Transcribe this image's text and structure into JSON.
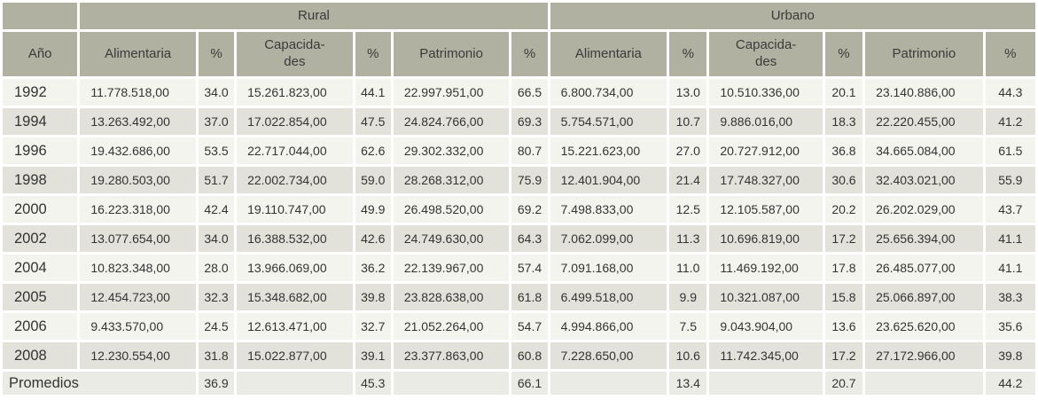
{
  "colors": {
    "header_bg": "#b1b1a2",
    "row_bg": "#f4f4ef",
    "row_alt_bg": "#e2e2da",
    "footer_bg": "#ebebe6",
    "text": "#333333",
    "gap": "#ffffff"
  },
  "chart_data": {
    "type": "table",
    "group_headers": [
      {
        "label": "",
        "span": 1
      },
      {
        "label": "Rural",
        "span": 6
      },
      {
        "label": "Urbano",
        "span": 6
      }
    ],
    "columns": [
      "Año",
      "Alimentaria",
      "%",
      "Capacida-\ndes",
      "%",
      "Patrimonio",
      "%",
      "Alimentaria",
      "%",
      "Capacida-\ndes",
      "%",
      "Patrimonio",
      "%"
    ],
    "rows": [
      {
        "cells": [
          "1992",
          "11.778.518,00",
          "34.0",
          "15.261.823,00",
          "44.1",
          "22.997.951,00",
          "66.5",
          "6.800.734,00",
          "13.0",
          "10.510.336,00",
          "20.1",
          "23.140.886,00",
          "44.3"
        ]
      },
      {
        "cells": [
          "1994",
          "13.263.492,00",
          "37.0",
          "17.022.854,00",
          "47.5",
          "24.824.766,00",
          "69.3",
          "5.754.571,00",
          "10.7",
          "9.886.016,00",
          "18.3",
          "22.220.455,00",
          "41.2"
        ]
      },
      {
        "cells": [
          "1996",
          "19.432.686,00",
          "53.5",
          "22.717.044,00",
          "62.6",
          "29.302.332,00",
          "80.7",
          "15.221.623,00",
          "27.0",
          "20.727.912,00",
          "36.8",
          "34.665.084,00",
          "61.5"
        ]
      },
      {
        "cells": [
          "1998",
          "19.280.503,00",
          "51.7",
          "22.002.734,00",
          "59.0",
          "28.268.312,00",
          "75.9",
          "12.401.904,00",
          "21.4",
          "17.748.327,00",
          "30.6",
          "32.403.021,00",
          "55.9"
        ]
      },
      {
        "cells": [
          "2000",
          "16.223.318,00",
          "42.4",
          "19.110.747,00",
          "49.9",
          "26.498.520,00",
          "69.2",
          "7.498.833,00",
          "12.5",
          "12.105.587,00",
          "20.2",
          "26.202.029,00",
          "43.7"
        ]
      },
      {
        "cells": [
          "2002",
          "13.077.654,00",
          "34.0",
          "16.388.532,00",
          "42.6",
          "24.749.630,00",
          "64.3",
          "7.062.099,00",
          "11.3",
          "10.696.819,00",
          "17.2",
          "25.656.394,00",
          "41.1"
        ]
      },
      {
        "cells": [
          "2004",
          "10.823.348,00",
          "28.0",
          "13.966.069,00",
          "36.2",
          "22.139.967,00",
          "57.4",
          "7.091.168,00",
          "11.0",
          "11.469.192,00",
          "17.8",
          "26.485.077,00",
          "41.1"
        ]
      },
      {
        "cells": [
          "2005",
          "12.454.723,00",
          "32.3",
          "15.348.682,00",
          "39.8",
          "23.828.638,00",
          "61.8",
          "6.499.518,00",
          "9.9",
          "10.321.087,00",
          "15.8",
          "25.066.897,00",
          "38.3"
        ]
      },
      {
        "cells": [
          "2006",
          "9.433.570,00",
          "24.5",
          "12.613.471,00",
          "32.7",
          "21.052.264,00",
          "54.7",
          "4.994.866,00",
          "7.5",
          "9.043.904,00",
          "13.6",
          "23.625.620,00",
          "35.6"
        ]
      },
      {
        "cells": [
          "2008",
          "12.230.554,00",
          "31.8",
          "15.022.877,00",
          "39.1",
          "23.377.863,00",
          "60.8",
          "7.228.650,00",
          "10.6",
          "11.742.345,00",
          "17.2",
          "27.172.966,00",
          "39.8"
        ]
      }
    ],
    "footer": {
      "label": "Promedios",
      "label_span": 2,
      "cells": [
        "36.9",
        "",
        "45.3",
        "",
        "66.1",
        "",
        "13.4",
        "",
        "20.7",
        "",
        "44.2"
      ]
    }
  }
}
